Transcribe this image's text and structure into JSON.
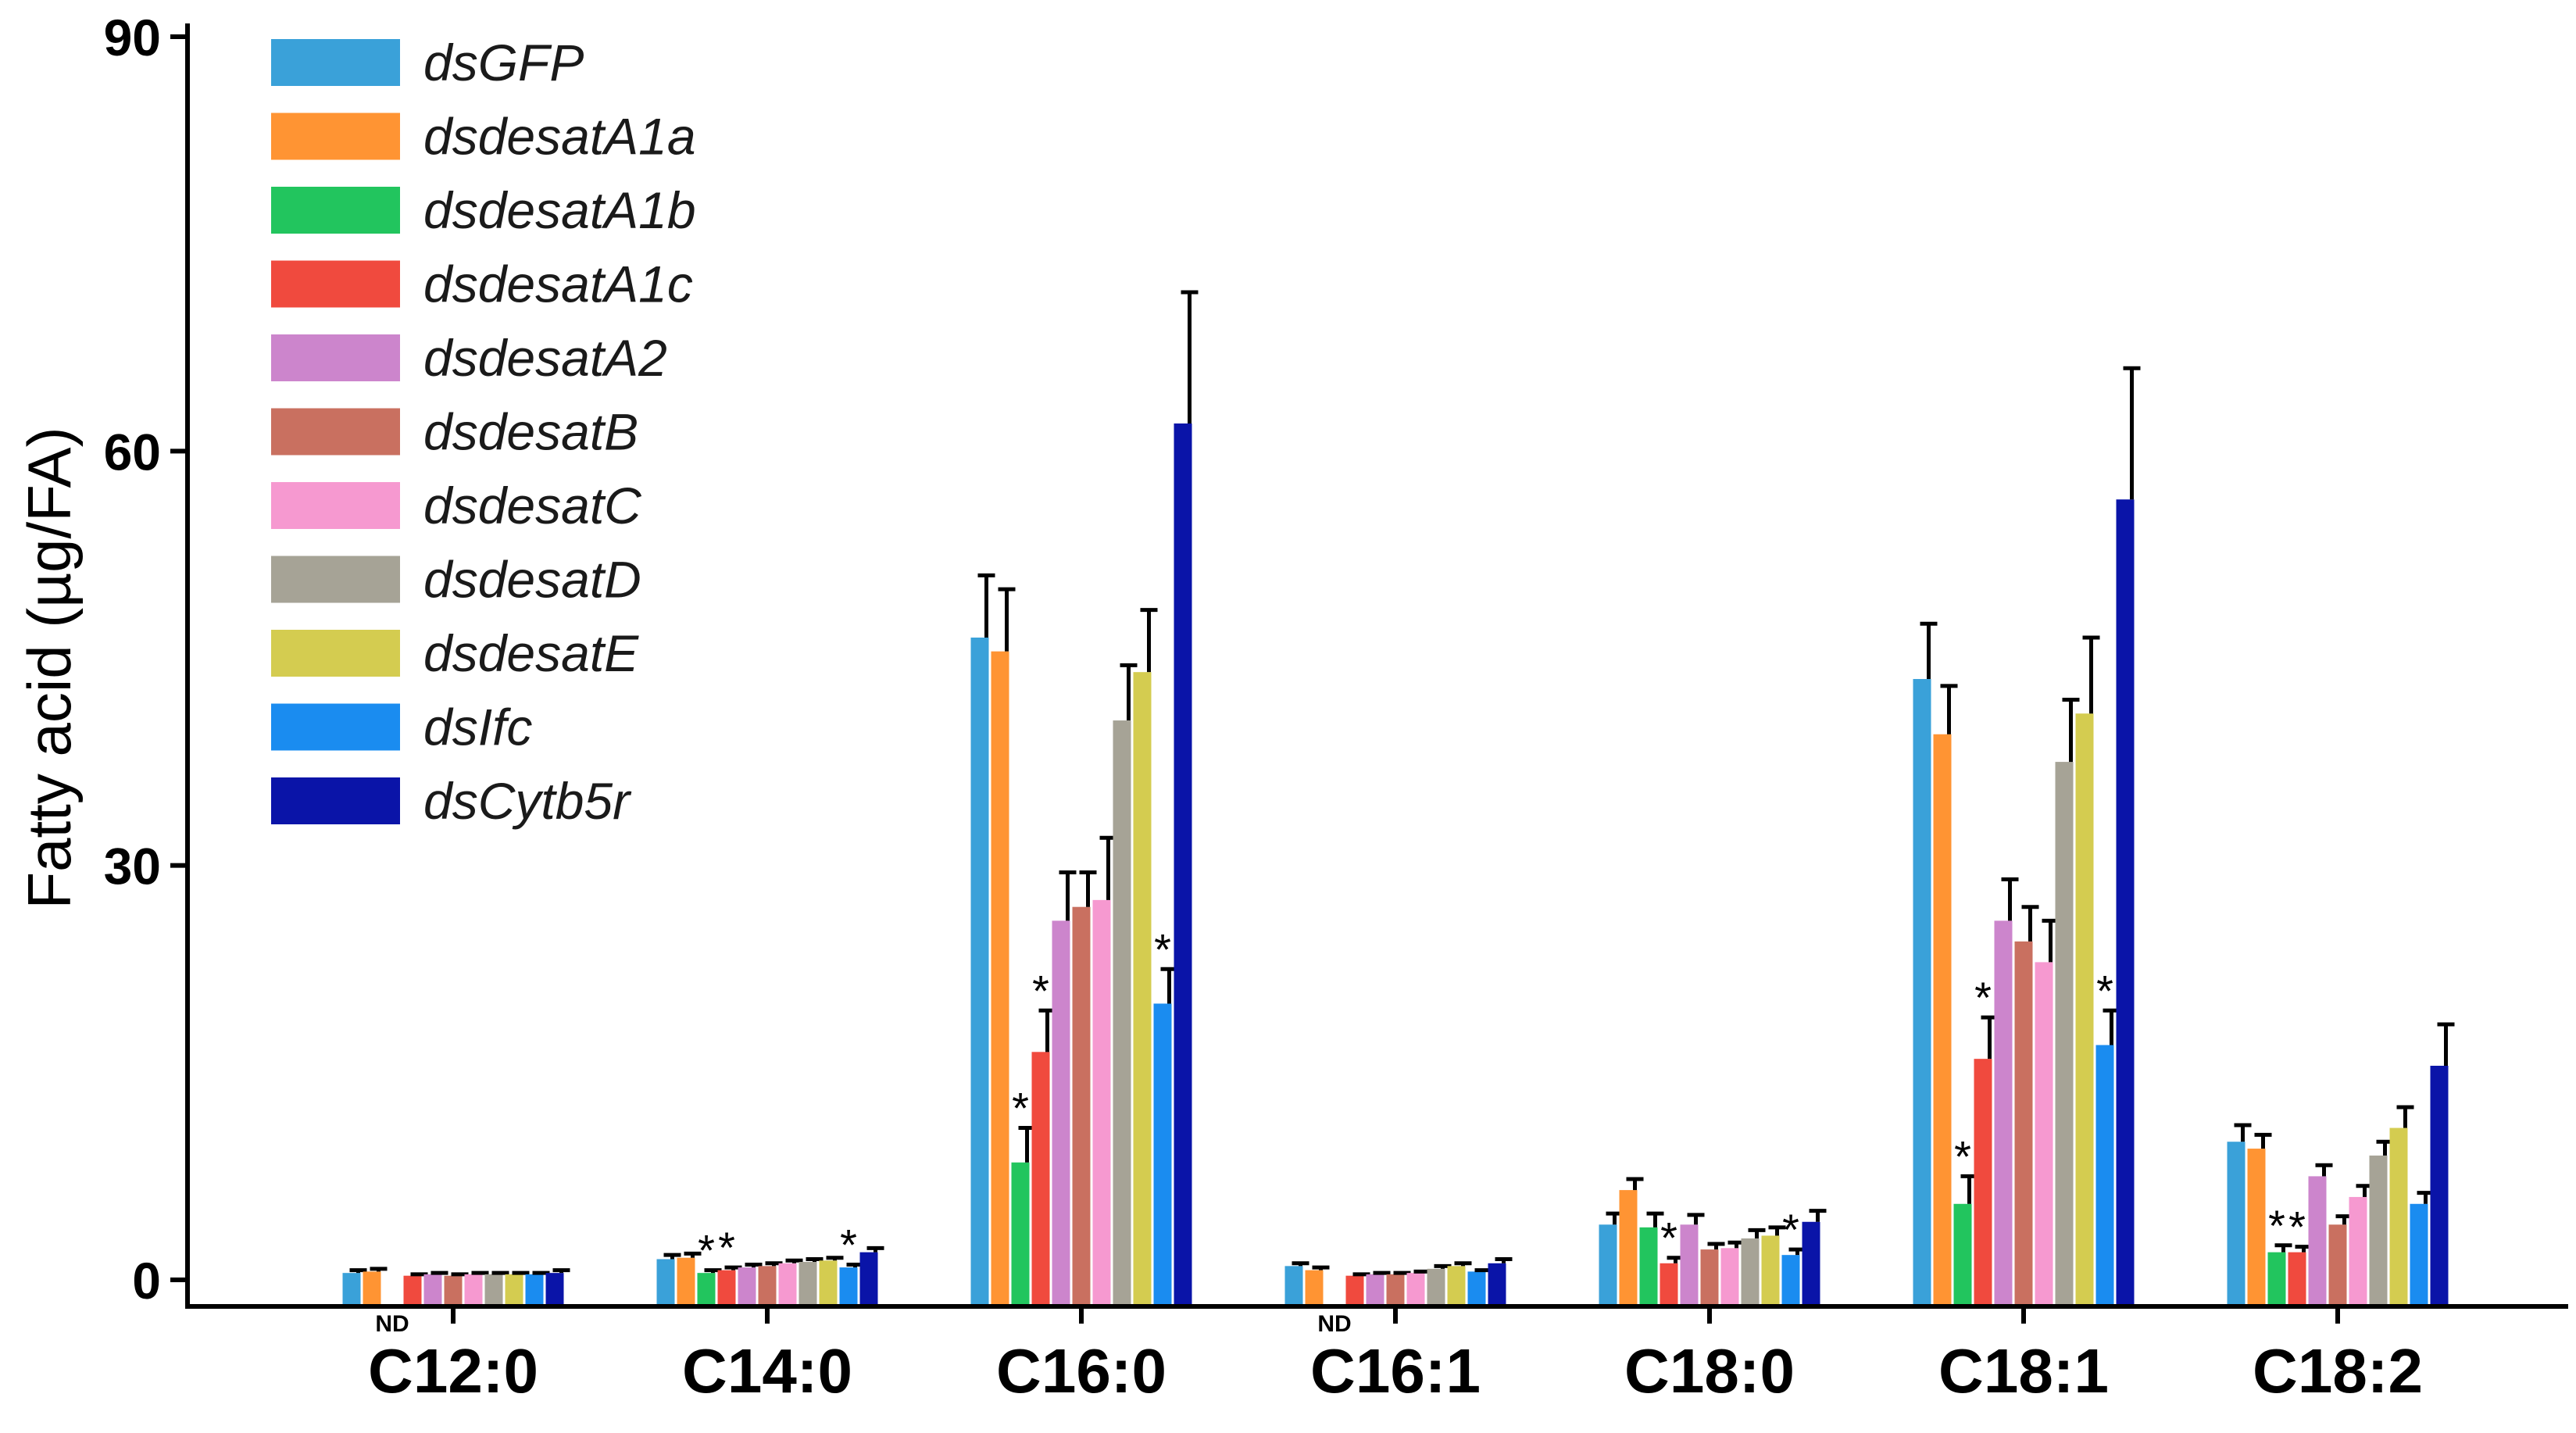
{
  "chart_data": {
    "type": "bar",
    "title": "",
    "xlabel": "",
    "ylabel": "Fatty acid (µg/FA)",
    "ylim": [
      0,
      90
    ],
    "yticks": [
      "0",
      "30",
      "60",
      "90"
    ],
    "ytick_values": [
      0,
      30,
      60,
      90
    ],
    "categories": [
      "C12:0",
      "C14:0",
      "C16:0",
      "C16:1",
      "C18:0",
      "C18:1",
      "C18:2"
    ],
    "legend_position": "top-left",
    "not_detected_label": "ND",
    "significance_marker": "*",
    "series": [
      {
        "name": "dsGFP",
        "color": "#3aa1d9",
        "values": [
          0.5,
          1.5,
          46.5,
          1.0,
          4.0,
          43.5,
          10.0
        ],
        "errors": [
          0.2,
          0.3,
          4.5,
          0.2,
          0.8,
          4.0,
          1.2
        ],
        "significant": [
          false,
          false,
          false,
          false,
          false,
          false,
          false
        ],
        "not_detected": [
          false,
          false,
          false,
          false,
          false,
          false,
          false
        ]
      },
      {
        "name": "dsdesatA1a",
        "color": "#ff9433",
        "values": [
          0.6,
          1.6,
          45.5,
          0.7,
          6.5,
          39.5,
          9.5
        ],
        "errors": [
          0.2,
          0.3,
          4.5,
          0.2,
          0.8,
          3.5,
          1.0
        ],
        "significant": [
          false,
          false,
          false,
          false,
          false,
          false,
          false
        ],
        "not_detected": [
          false,
          false,
          false,
          false,
          false,
          false,
          false
        ]
      },
      {
        "name": "dsdesatA1b",
        "color": "#22c55e",
        "values": [
          0,
          0.5,
          8.5,
          0,
          3.8,
          5.5,
          2.0
        ],
        "errors": [
          0,
          0.2,
          2.5,
          0,
          1.0,
          2.0,
          0.5
        ],
        "significant": [
          false,
          true,
          true,
          false,
          false,
          true,
          true
        ],
        "not_detected": [
          true,
          false,
          false,
          true,
          false,
          false,
          false
        ]
      },
      {
        "name": "dsdesatA1c",
        "color": "#f04a3e",
        "values": [
          0.3,
          0.7,
          16.5,
          0.3,
          1.2,
          16.0,
          2.0
        ],
        "errors": [
          0.1,
          0.2,
          3.0,
          0.1,
          0.4,
          3.0,
          0.4
        ],
        "significant": [
          false,
          true,
          true,
          false,
          true,
          true,
          true
        ],
        "not_detected": [
          false,
          false,
          false,
          false,
          false,
          false,
          false
        ]
      },
      {
        "name": "dsdesatA2",
        "color": "#cc85cc",
        "values": [
          0.4,
          0.9,
          26.0,
          0.4,
          4.0,
          26.0,
          7.5
        ],
        "errors": [
          0.1,
          0.2,
          3.5,
          0.1,
          0.7,
          3.0,
          0.8
        ],
        "significant": [
          false,
          false,
          false,
          false,
          false,
          false,
          false
        ],
        "not_detected": [
          false,
          false,
          false,
          false,
          false,
          false,
          false
        ]
      },
      {
        "name": "dsdesatB",
        "color": "#c97060",
        "values": [
          0.3,
          1.0,
          27.0,
          0.4,
          2.2,
          24.5,
          4.0
        ],
        "errors": [
          0.1,
          0.2,
          2.5,
          0.1,
          0.4,
          2.5,
          0.6
        ],
        "significant": [
          false,
          false,
          false,
          false,
          false,
          false,
          false
        ],
        "not_detected": [
          false,
          false,
          false,
          false,
          false,
          false,
          false
        ]
      },
      {
        "name": "dsdesatC",
        "color": "#f699d0",
        "values": [
          0.4,
          1.2,
          27.5,
          0.5,
          2.3,
          23.0,
          6.0
        ],
        "errors": [
          0.1,
          0.2,
          4.5,
          0.1,
          0.4,
          3.0,
          0.8
        ],
        "significant": [
          false,
          false,
          false,
          false,
          false,
          false,
          false
        ],
        "not_detected": [
          false,
          false,
          false,
          false,
          false,
          false,
          false
        ]
      },
      {
        "name": "dsdesatD",
        "color": "#a6a396",
        "values": [
          0.4,
          1.3,
          40.5,
          0.8,
          3.0,
          37.5,
          9.0
        ],
        "errors": [
          0.1,
          0.2,
          4.0,
          0.2,
          0.6,
          4.5,
          1.0
        ],
        "significant": [
          false,
          false,
          false,
          false,
          false,
          false,
          false
        ],
        "not_detected": [
          false,
          false,
          false,
          false,
          false,
          false,
          false
        ]
      },
      {
        "name": "dsdesatE",
        "color": "#d4cc50",
        "values": [
          0.4,
          1.4,
          44.0,
          1.0,
          3.2,
          41.0,
          11.0
        ],
        "errors": [
          0.1,
          0.2,
          4.5,
          0.2,
          0.6,
          5.5,
          1.5
        ],
        "significant": [
          false,
          false,
          false,
          false,
          false,
          false,
          false
        ],
        "not_detected": [
          false,
          false,
          false,
          false,
          false,
          false,
          false
        ]
      },
      {
        "name": "dsIfc",
        "color": "#1a8cf0",
        "values": [
          0.4,
          0.9,
          20.0,
          0.6,
          1.8,
          17.0,
          5.5
        ],
        "errors": [
          0.1,
          0.2,
          2.5,
          0.1,
          0.4,
          2.5,
          0.8
        ],
        "significant": [
          false,
          true,
          true,
          false,
          true,
          true,
          false
        ],
        "not_detected": [
          false,
          false,
          false,
          false,
          false,
          false,
          false
        ]
      },
      {
        "name": "dsCytb5r",
        "color": "#0a14a8",
        "values": [
          0.5,
          2.0,
          62.0,
          1.2,
          4.2,
          56.5,
          15.5
        ],
        "errors": [
          0.2,
          0.3,
          9.5,
          0.3,
          0.8,
          9.5,
          3.0
        ],
        "significant": [
          false,
          false,
          false,
          false,
          false,
          false,
          false
        ],
        "not_detected": [
          false,
          false,
          false,
          false,
          false,
          false,
          false
        ]
      }
    ]
  }
}
